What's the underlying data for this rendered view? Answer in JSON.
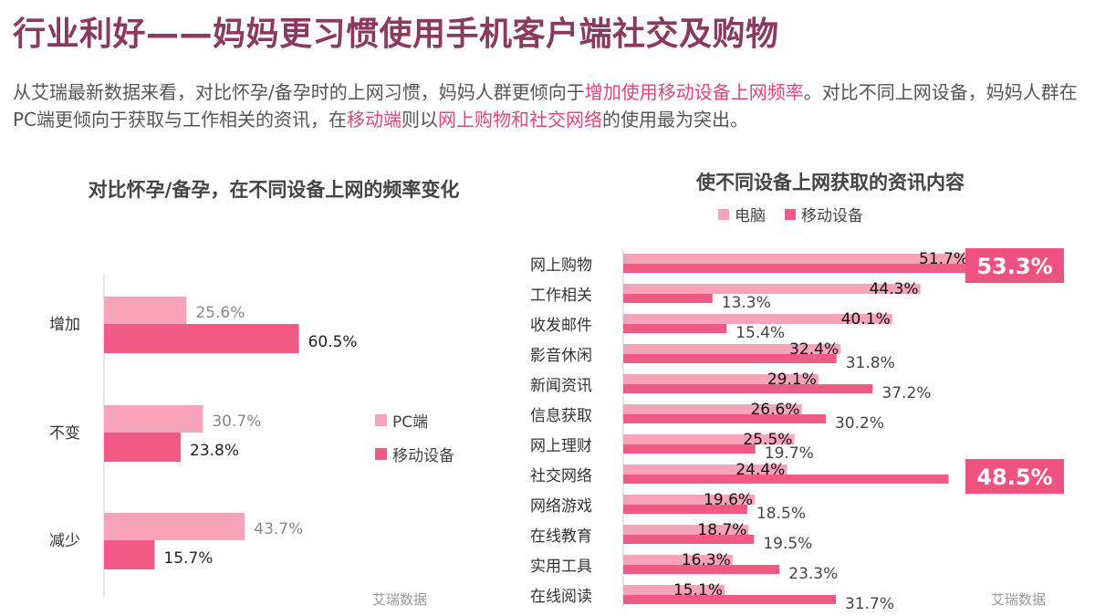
{
  "header": {
    "title": "行业利好——妈妈更习惯使用手机客户端社交及购物",
    "intro_parts": [
      {
        "text": "从艾瑞最新数据来看，对比怀孕/备孕时的上网习惯，妈妈人群更倾向于",
        "hl": false
      },
      {
        "text": "增加使用移动设备上网频率",
        "hl": true
      },
      {
        "text": "。对比不同上网设备，妈妈人群在PC端更倾向于获取与工作相关的资讯，在",
        "hl": false
      },
      {
        "text": "移动端",
        "hl": true
      },
      {
        "text": "则以",
        "hl": false
      },
      {
        "text": "网上购物和社交网络",
        "hl": true
      },
      {
        "text": "的使用最为突出。",
        "hl": false
      }
    ]
  },
  "colors": {
    "title": "#8a3a5e",
    "highlight": "#e0457b",
    "light_pink": "#f7a4ba",
    "deep_pink": "#f05a85",
    "callout_bg": "#f0527f",
    "axis": "#cccccc"
  },
  "chart_data": [
    {
      "type": "bar",
      "orientation": "horizontal",
      "title": "对比怀孕/备孕，在不同设备上网的频率变化",
      "categories": [
        "增加",
        "不变",
        "减少"
      ],
      "series": [
        {
          "name": "PC端",
          "values": [
            25.6,
            30.7,
            43.7
          ]
        },
        {
          "name": "移动设备",
          "values": [
            60.5,
            23.8,
            15.7
          ]
        }
      ],
      "value_labels": {
        "PC端": [
          "25.6%",
          "30.7%",
          "43.7%"
        ],
        "移动设备": [
          "60.5%",
          "23.8%",
          "15.7%"
        ]
      },
      "legend": "right",
      "source": "艾瑞数据",
      "grid": false
    },
    {
      "type": "bar",
      "orientation": "horizontal",
      "title": "使不同设备上网获取的资讯内容",
      "categories": [
        "网上购物",
        "工作相关",
        "收发邮件",
        "影音休闲",
        "新闻资讯",
        "信息获取",
        "网上理财",
        "社交网络",
        "网络游戏",
        "在线教育",
        "实用工具",
        "在线阅读"
      ],
      "series": [
        {
          "name": "电脑",
          "values": [
            51.7,
            44.3,
            40.1,
            32.4,
            29.1,
            26.6,
            25.5,
            24.4,
            19.6,
            18.7,
            16.3,
            15.1
          ]
        },
        {
          "name": "移动设备",
          "values": [
            53.3,
            13.3,
            15.4,
            31.8,
            37.2,
            30.2,
            19.7,
            48.5,
            18.5,
            19.5,
            23.3,
            31.7
          ]
        }
      ],
      "value_labels": {
        "电脑": [
          "51.7%",
          "44.3%",
          "40.1%",
          "32.4%",
          "29.1%",
          "26.6%",
          "25.5%",
          "24.4%",
          "19.6%",
          "18.7%",
          "16.3%",
          "15.1%"
        ],
        "移动设备": [
          "53.3%",
          "13.3%",
          "15.4%",
          "31.8%",
          "37.2%",
          "30.2%",
          "19.7%",
          "48.5%",
          "18.5%",
          "19.5%",
          "23.3%",
          "31.7%"
        ]
      },
      "highlighted": {
        "网上购物": "53.3%",
        "社交网络": "48.5%"
      },
      "legend": "top",
      "source": "艾瑞数据",
      "grid": false
    }
  ]
}
